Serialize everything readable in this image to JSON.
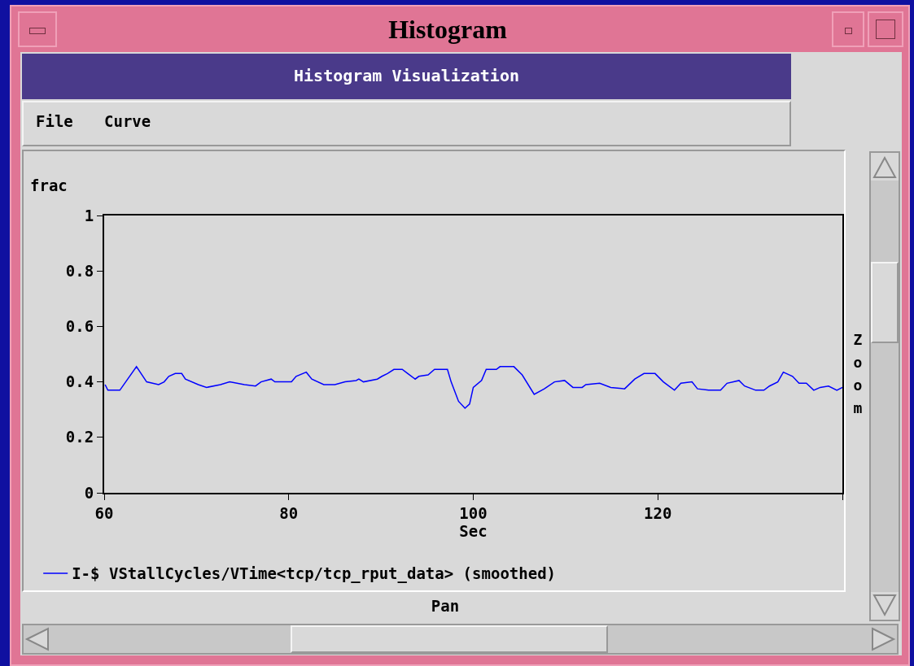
{
  "chart_data": {
    "type": "line",
    "title": "Histogram",
    "subtitle": "Histogram Visualization",
    "xlabel": "Sec",
    "ylabel": "frac",
    "annotations": [
      "File",
      "Curve",
      "Zoom",
      "Pan"
    ],
    "x": [
      60.1,
      60.4,
      61.7,
      63.5,
      64.6,
      65.9,
      66.5,
      67.0,
      67.7,
      68.4,
      68.8,
      70.2,
      71.1,
      72.6,
      73.6,
      75.2,
      76.4,
      77.0,
      78.1,
      78.5,
      80.3,
      80.8,
      81.9,
      82.5,
      83.8,
      85.0,
      86.1,
      87.3,
      87.6,
      88.1,
      89.6,
      90.1,
      90.7,
      91.4,
      92.3,
      92.9,
      93.7,
      94.1,
      95.1,
      95.8,
      97.2,
      97.6,
      98.4,
      99.1,
      99.6,
      100.0,
      100.9,
      101.4,
      102.5,
      102.9,
      104.4,
      105.3,
      106.6,
      107.7,
      108.8,
      109.9,
      110.8,
      111.8,
      112.2,
      113.7,
      114.9,
      116.4,
      117.5,
      118.5,
      119.1,
      119.7,
      120.6,
      121.8,
      122.5,
      123.7,
      124.3,
      125.5,
      126.8,
      127.5,
      128.8,
      129.4,
      130.6,
      131.5,
      132.1,
      133.0,
      133.6,
      134.6,
      135.3,
      136.1,
      136.9,
      137.6,
      138.5,
      139.4,
      140.0
    ],
    "series": [
      {
        "name": "I-$ VStallCycles/VTime<tcp/tcp_rput_data> (smoothed)",
        "color": "#0000ff",
        "values": [
          0.39,
          0.37,
          0.37,
          0.455,
          0.4,
          0.39,
          0.4,
          0.42,
          0.43,
          0.43,
          0.41,
          0.39,
          0.38,
          0.39,
          0.4,
          0.39,
          0.385,
          0.4,
          0.41,
          0.4,
          0.4,
          0.42,
          0.435,
          0.41,
          0.39,
          0.39,
          0.4,
          0.405,
          0.41,
          0.4,
          0.41,
          0.42,
          0.43,
          0.445,
          0.445,
          0.43,
          0.41,
          0.42,
          0.425,
          0.445,
          0.445,
          0.4,
          0.33,
          0.305,
          0.32,
          0.38,
          0.405,
          0.445,
          0.445,
          0.455,
          0.455,
          0.425,
          0.355,
          0.375,
          0.4,
          0.405,
          0.38,
          0.38,
          0.39,
          0.395,
          0.38,
          0.375,
          0.41,
          0.43,
          0.43,
          0.43,
          0.4,
          0.37,
          0.395,
          0.4,
          0.375,
          0.37,
          0.37,
          0.395,
          0.405,
          0.385,
          0.37,
          0.37,
          0.385,
          0.4,
          0.435,
          0.42,
          0.395,
          0.395,
          0.37,
          0.38,
          0.385,
          0.37,
          0.38
        ]
      }
    ],
    "xlim": [
      60,
      140
    ],
    "xticks": [
      60,
      80,
      100,
      120,
      {
        "value": 140,
        "label": null
      }
    ],
    "ylim": [
      0,
      1
    ],
    "yticks": [
      0,
      0.2,
      0.4,
      0.6,
      0.8,
      1
    ],
    "legend": "bottom"
  }
}
